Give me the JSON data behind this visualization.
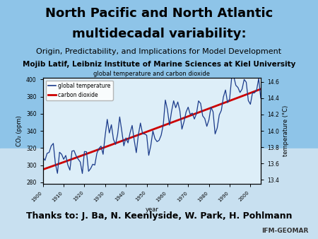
{
  "title_line1": "North Pacific and North Atlantic",
  "title_line2": "multidecadal variability:",
  "subtitle": "Origin, Predictability, and Implications for Model Development",
  "author": "Mojib Latif, Leibniz Institute of Marine Sciences at Kiel University",
  "thanks": "Thanks to: J. Ba, N. Keenlyside, W. Park, H. Pohlmann",
  "chart_title": "global temperature and carbon dioxide",
  "xlabel": "year",
  "ylabel_left": "CO₂ (ppm)",
  "ylabel_right": "temperature (°C)",
  "legend_temp": "global temperature",
  "legend_co2": "carbon dioxide",
  "bg_top": "#8ec4e8",
  "bg_bottom": "#ddeef8",
  "chart_bg": "#ddeef8",
  "xlim": [
    1900,
    2005
  ],
  "ylim_left": [
    278,
    402
  ],
  "ylim_right": [
    13.35,
    14.65
  ],
  "yticks_left": [
    280,
    300,
    320,
    340,
    360,
    380,
    400
  ],
  "yticks_right": [
    13.4,
    13.6,
    13.8,
    14.0,
    14.2,
    14.4,
    14.6
  ],
  "xticks": [
    1900,
    1910,
    1920,
    1930,
    1940,
    1950,
    1960,
    1970,
    1980,
    1990,
    2000
  ],
  "temp_color": "#1a3a8a",
  "co2_color": "#cc0000",
  "title_fontsize": 13,
  "subtitle_fontsize": 8,
  "author_fontsize": 7.5,
  "thanks_fontsize": 9
}
